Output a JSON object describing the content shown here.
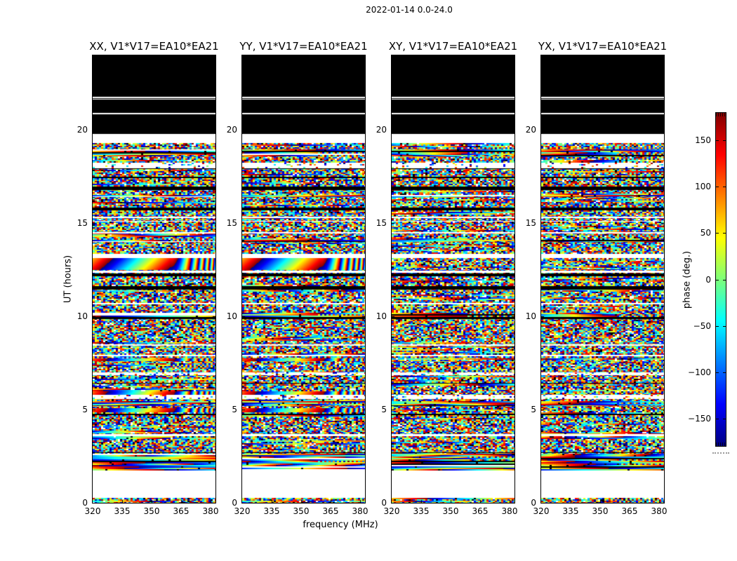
{
  "figure": {
    "title": "2022-01-14 0.0-24.0",
    "background": "#ffffff"
  },
  "panels": [
    {
      "pol": "XX",
      "title": "XX, V1*V17=EA10*EA21"
    },
    {
      "pol": "YY",
      "title": "YY, V1*V17=EA10*EA21"
    },
    {
      "pol": "XY",
      "title": "XY, V1*V17=EA10*EA21"
    },
    {
      "pol": "YX",
      "title": "YX, V1*V17=EA10*EA21"
    }
  ],
  "axes": {
    "xlabel": "frequency (MHz)",
    "ylabel": "UT (hours)",
    "xticks": [
      320,
      335,
      350,
      365,
      380
    ],
    "yticks": [
      0,
      5,
      10,
      15,
      20
    ],
    "xlim": [
      320,
      382.5
    ],
    "ylim": [
      0,
      24
    ]
  },
  "colorbar": {
    "label": "phase (deg.)",
    "ticks": [
      150,
      100,
      50,
      0,
      -50,
      -100,
      -150
    ],
    "vmin": -180,
    "vmax": 180,
    "colormap": "jet"
  },
  "chart_data": {
    "type": "heatmap",
    "title": "2022-01-14 0.0-24.0",
    "subplot_titles": [
      "XX, V1*V17=EA10*EA21",
      "YY, V1*V17=EA10*EA21",
      "XY, V1*V17=EA10*EA21",
      "YX, V1*V17=EA10*EA21"
    ],
    "baseline": "V1*V17=EA10*EA21",
    "polarizations": [
      "XX",
      "YY",
      "XY",
      "YX"
    ],
    "xlabel": "frequency (MHz)",
    "ylabel": "UT (hours)",
    "colorbar_label": "phase (deg.)",
    "xlim": [
      320,
      382.5
    ],
    "ylim": [
      0,
      24
    ],
    "xticks": [
      320,
      335,
      350,
      365,
      380
    ],
    "yticks": [
      0,
      5,
      10,
      15,
      20
    ],
    "colormap": "jet",
    "value_range_deg": [
      -180,
      180
    ],
    "colorbar_ticks": [
      150,
      100,
      50,
      0,
      -50,
      -100,
      -150
    ],
    "description": "Visibility phase vs UT hour (y) and frequency (x) for baseline EA10*EA21 on 2022-01-14, 0.0-24.0 UT. Top of each panel (UT ~19.8-24) is flagged/black with thin white gaps; UT ~19.3 down to ~1.7 is noise-like wrapped phase with horizontal white/black dropout rows; coherent smooth phase-wrap bands appear only in XX and YY near UT 12.5-13.1, 7.6-7.7, 5.8-6.0 and 4.9-5.1; striped coherent rows near UT 1.7-2.6 in all panels; UT ~0.26-1.7 blank; thin noise strip at UT 0.",
    "bands": [
      {
        "h0": 24.0,
        "h1": 19.8,
        "kind": "black"
      },
      {
        "h0": 21.79,
        "h1": 21.71,
        "kind": "white"
      },
      {
        "h0": 21.66,
        "h1": 21.62,
        "kind": "white"
      },
      {
        "h0": 20.9,
        "h1": 20.84,
        "kind": "white"
      },
      {
        "h0": 19.8,
        "h1": 19.3,
        "kind": "white"
      },
      {
        "h0": 19.3,
        "h1": 1.72,
        "kind": "noise"
      },
      {
        "h0": 18.97,
        "h1": 18.6,
        "kind": "stripes"
      },
      {
        "h0": 18.25,
        "h1": 17.95,
        "kind": "sparse"
      },
      {
        "h0": 17.95,
        "h1": 17.9,
        "kind": "black"
      },
      {
        "h0": 17.48,
        "h1": 17.43,
        "kind": "black"
      },
      {
        "h0": 16.95,
        "h1": 16.78,
        "kind": "black"
      },
      {
        "h0": 16.5,
        "h1": 16.42,
        "kind": "stripes"
      },
      {
        "h0": 15.82,
        "h1": 15.68,
        "kind": "black"
      },
      {
        "h0": 15.34,
        "h1": 15.28,
        "kind": "white"
      },
      {
        "h0": 15.14,
        "h1": 15.09,
        "kind": "white"
      },
      {
        "h0": 14.52,
        "h1": 14.46,
        "kind": "white"
      },
      {
        "h0": 14.1,
        "h1": 14.0,
        "kind": "stripes"
      },
      {
        "h0": 13.34,
        "h1": 13.14,
        "kind": "white"
      },
      {
        "h0": 13.14,
        "h1": 12.49,
        "kind": "smooth",
        "pols": [
          "XX",
          "YY"
        ]
      },
      {
        "h0": 12.45,
        "h1": 12.32,
        "kind": "white"
      },
      {
        "h0": 12.3,
        "h1": 12.15,
        "kind": "black"
      },
      {
        "h0": 11.64,
        "h1": 11.44,
        "kind": "black"
      },
      {
        "h0": 10.72,
        "h1": 10.66,
        "kind": "white"
      },
      {
        "h0": 10.2,
        "h1": 9.95,
        "kind": "stripes"
      },
      {
        "h0": 9.95,
        "h1": 9.87,
        "kind": "black"
      },
      {
        "h0": 8.5,
        "h1": 8.44,
        "kind": "white"
      },
      {
        "h0": 7.93,
        "h1": 7.87,
        "kind": "white"
      },
      {
        "h0": 7.74,
        "h1": 7.58,
        "kind": "smooth",
        "pols": [
          "XX",
          "YY"
        ]
      },
      {
        "h0": 7.0,
        "h1": 6.86,
        "kind": "sparse"
      },
      {
        "h0": 6.44,
        "h1": 6.39,
        "kind": "black"
      },
      {
        "h0": 5.98,
        "h1": 5.8,
        "kind": "smooth",
        "pols": [
          "XX",
          "YY"
        ]
      },
      {
        "h0": 5.8,
        "h1": 5.56,
        "kind": "sparse"
      },
      {
        "h0": 5.47,
        "h1": 5.2,
        "kind": "stripes"
      },
      {
        "h0": 5.08,
        "h1": 4.87,
        "kind": "smooth",
        "pols": [
          "XX",
          "YY"
        ]
      },
      {
        "h0": 4.78,
        "h1": 4.7,
        "kind": "black"
      },
      {
        "h0": 3.68,
        "h1": 3.57,
        "kind": "white"
      },
      {
        "h0": 2.72,
        "h1": 2.67,
        "kind": "black"
      },
      {
        "h0": 2.64,
        "h1": 1.72,
        "kind": "stripes"
      },
      {
        "h0": 1.72,
        "h1": 0.26,
        "kind": "white"
      },
      {
        "h0": 0.26,
        "h1": 0.0,
        "kind": "noise"
      }
    ]
  }
}
